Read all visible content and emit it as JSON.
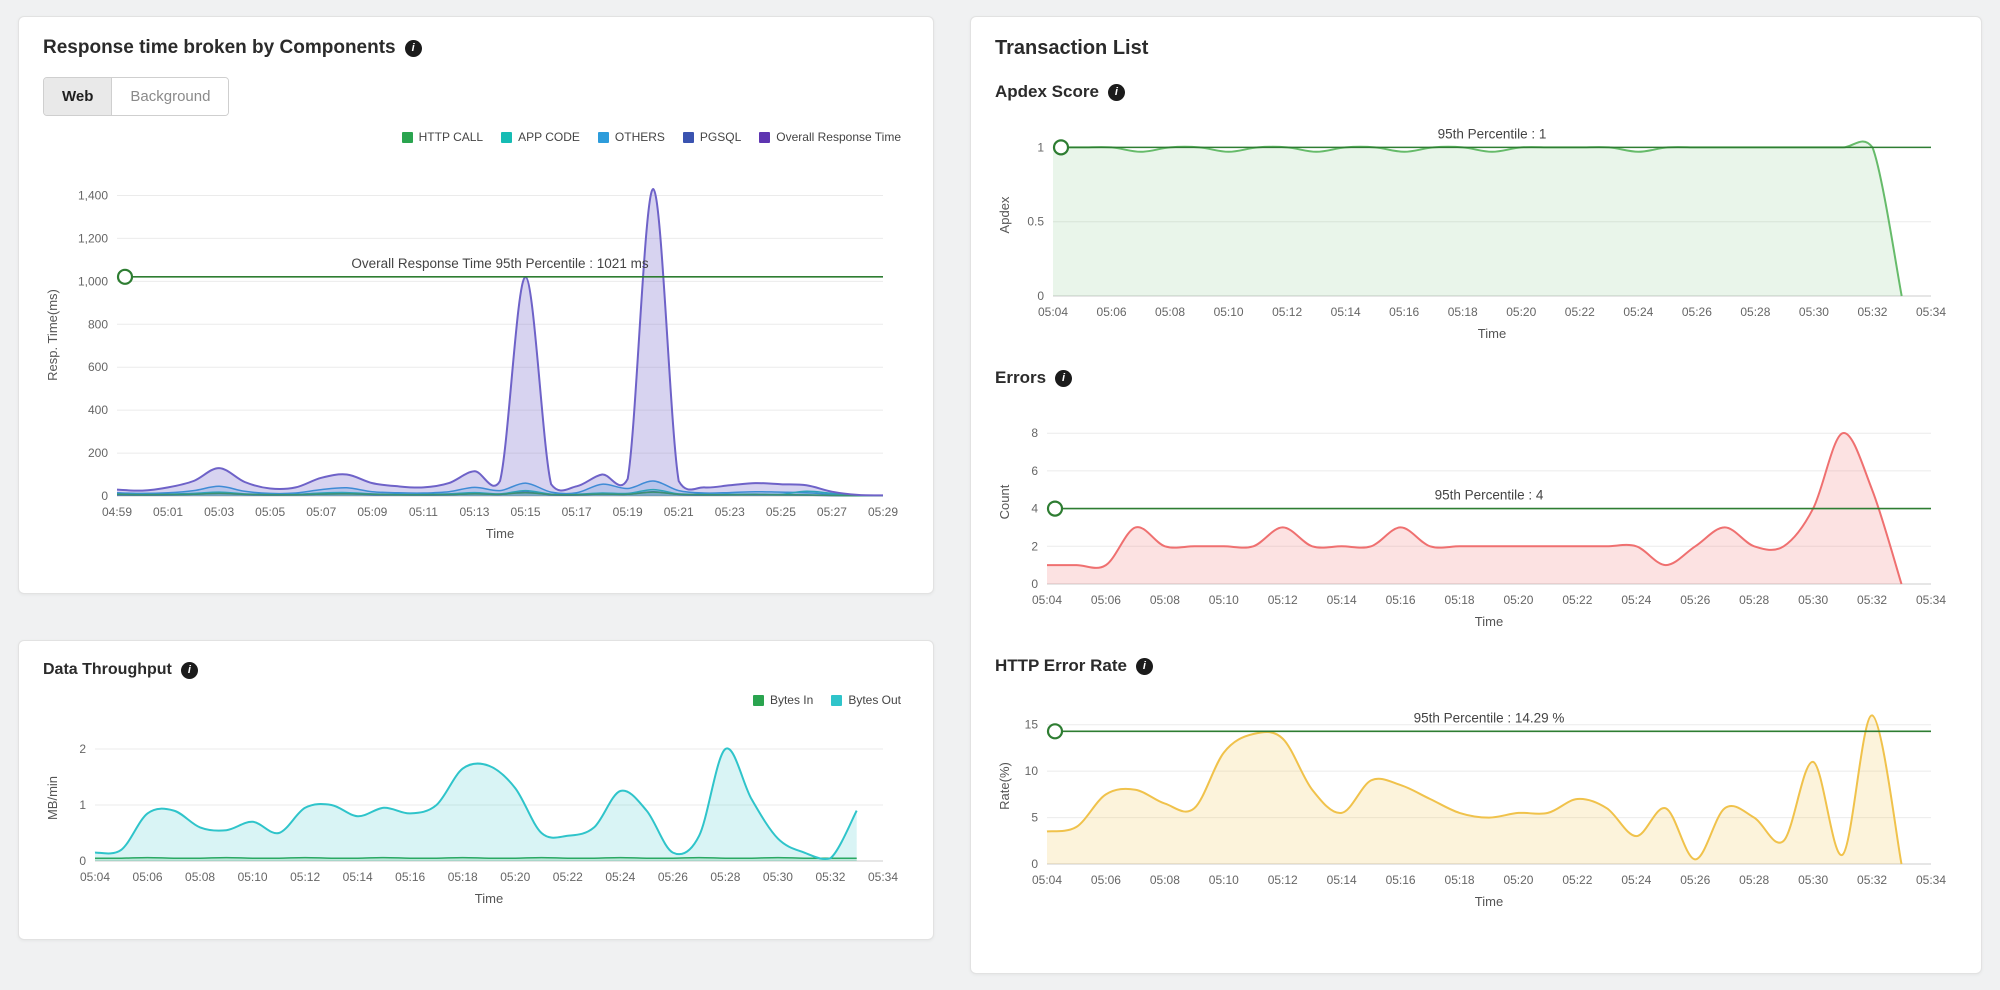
{
  "panels": {
    "response": {
      "title": "Response time broken by Components",
      "tabs": [
        {
          "label": "Web",
          "active": true
        },
        {
          "label": "Background",
          "active": false
        }
      ],
      "legend": [
        {
          "label": "HTTP CALL",
          "color": "#2aa44f"
        },
        {
          "label": "APP CODE",
          "color": "#16bcb4"
        },
        {
          "label": "OTHERS",
          "color": "#2d9cdb"
        },
        {
          "label": "PGSQL",
          "color": "#3a53b0"
        },
        {
          "label": "Overall Response Time",
          "color": "#5e35b1"
        }
      ]
    },
    "throughput": {
      "title": "Data Throughput",
      "legend": [
        {
          "label": "Bytes In",
          "color": "#2aa44f"
        },
        {
          "label": "Bytes Out",
          "color": "#2fc4ca"
        }
      ]
    },
    "transactions": {
      "title": "Transaction List",
      "sections": [
        {
          "title": "Apdex Score"
        },
        {
          "title": "Errors"
        },
        {
          "title": "HTTP Error Rate"
        }
      ]
    }
  },
  "chart_data": [
    {
      "id": "response-chart",
      "type": "area",
      "title": "Response time broken by Components",
      "xlabel": "Time",
      "ylabel": "Resp. Time(ms)",
      "x_labels": [
        "04:59",
        "05:01",
        "05:03",
        "05:05",
        "05:07",
        "05:09",
        "05:11",
        "05:13",
        "05:15",
        "05:17",
        "05:19",
        "05:21",
        "05:23",
        "05:25",
        "05:27",
        "05:29"
      ],
      "y_ticks": [
        [
          0,
          "0"
        ],
        [
          200,
          "200"
        ],
        [
          400,
          "400"
        ],
        [
          600,
          "600"
        ],
        [
          800,
          "800"
        ],
        [
          1000,
          "1,000"
        ],
        [
          1200,
          "1,200"
        ],
        [
          1400,
          "1,400"
        ]
      ],
      "ymax": 1500,
      "grid": true,
      "threshold": {
        "value": 1021,
        "label": "Overall Response Time 95th Percentile : 1021 ms",
        "color": "#2e7d32"
      },
      "series": [
        {
          "name": "PGSQL",
          "color": "#3a53b0",
          "fill": "rgba(58,83,176,0.20)",
          "lw": 1.5,
          "values": [
            5,
            4,
            5,
            8,
            12,
            7,
            4,
            5,
            9,
            11,
            6,
            5,
            4,
            6,
            11,
            7,
            18,
            5,
            4,
            10,
            8,
            20,
            7,
            4,
            5,
            6,
            5,
            4,
            2,
            1,
            1
          ]
        },
        {
          "name": "OTHERS",
          "color": "#2d9cdb",
          "fill": "rgba(45,156,219,0.20)",
          "lw": 1.5,
          "values": [
            15,
            12,
            15,
            25,
            45,
            22,
            12,
            14,
            30,
            38,
            20,
            15,
            14,
            20,
            40,
            25,
            60,
            18,
            15,
            55,
            35,
            70,
            25,
            14,
            16,
            20,
            18,
            15,
            8,
            3,
            1
          ]
        },
        {
          "name": "APP CODE",
          "color": "#16bcb4",
          "fill": "rgba(22,188,180,0.20)",
          "lw": 1.5,
          "values": [
            10,
            8,
            9,
            12,
            18,
            10,
            8,
            8,
            14,
            16,
            10,
            8,
            8,
            10,
            16,
            10,
            25,
            9,
            8,
            14,
            12,
            30,
            10,
            8,
            8,
            9,
            8,
            22,
            12,
            3,
            1
          ]
        },
        {
          "name": "HTTP CALL",
          "color": "#2aa44f",
          "fill": "rgba(42,164,79,0.20)",
          "lw": 1.5,
          "values": [
            8,
            6,
            7,
            8,
            12,
            8,
            6,
            6,
            9,
            10,
            8,
            6,
            6,
            7,
            10,
            8,
            15,
            7,
            6,
            9,
            8,
            18,
            8,
            6,
            6,
            7,
            6,
            5,
            3,
            2,
            1
          ]
        },
        {
          "name": "Overall Response Time",
          "color": "#6e62c8",
          "fill": "rgba(110,98,200,0.28)",
          "lw": 2,
          "values": [
            30,
            25,
            40,
            70,
            130,
            65,
            35,
            40,
            85,
            100,
            60,
            45,
            40,
            60,
            115,
            70,
            1020,
            55,
            45,
            100,
            80,
            1430,
            70,
            40,
            50,
            60,
            55,
            50,
            20,
            5,
            3
          ]
        }
      ]
    },
    {
      "id": "throughput-chart",
      "type": "area",
      "title": "Data Throughput",
      "xlabel": "Time",
      "ylabel": "MB/min",
      "x_labels": [
        "05:04",
        "05:06",
        "05:08",
        "05:10",
        "05:12",
        "05:14",
        "05:16",
        "05:18",
        "05:20",
        "05:22",
        "05:24",
        "05:26",
        "05:28",
        "05:30",
        "05:32",
        "05:34"
      ],
      "y_ticks": [
        [
          0,
          "0"
        ],
        [
          1,
          "1"
        ],
        [
          2,
          "2"
        ]
      ],
      "ymax": 2.25,
      "n_span": 31,
      "grid": true,
      "series": [
        {
          "name": "Bytes In",
          "color": "#2aa44f",
          "fill": "rgba(42,164,79,0.18)",
          "lw": 1.5,
          "values": [
            0.05,
            0.05,
            0.06,
            0.05,
            0.05,
            0.06,
            0.05,
            0.05,
            0.06,
            0.05,
            0.05,
            0.06,
            0.05,
            0.05,
            0.06,
            0.05,
            0.05,
            0.06,
            0.05,
            0.05,
            0.06,
            0.05,
            0.05,
            0.06,
            0.05,
            0.05,
            0.06,
            0.05,
            0.05,
            0.05
          ]
        },
        {
          "name": "Bytes Out",
          "color": "#2fc4ca",
          "fill": "rgba(47,196,202,0.18)",
          "lw": 2,
          "values": [
            0.15,
            0.2,
            0.85,
            0.9,
            0.6,
            0.55,
            0.7,
            0.5,
            0.95,
            1.0,
            0.8,
            0.95,
            0.85,
            1.0,
            1.65,
            1.7,
            1.3,
            0.5,
            0.45,
            0.6,
            1.25,
            0.9,
            0.15,
            0.45,
            2.0,
            1.1,
            0.4,
            0.15,
            0.05,
            0.9
          ]
        }
      ]
    },
    {
      "id": "apdex-chart",
      "type": "area",
      "title": "Apdex Score",
      "xlabel": "Time",
      "ylabel": "Apdex",
      "x_labels": [
        "05:04",
        "05:06",
        "05:08",
        "05:10",
        "05:12",
        "05:14",
        "05:16",
        "05:18",
        "05:20",
        "05:22",
        "05:24",
        "05:26",
        "05:28",
        "05:30",
        "05:32",
        "05:34"
      ],
      "y_ticks": [
        [
          0,
          "0"
        ],
        [
          0.5,
          "0.5"
        ],
        [
          1,
          "1"
        ]
      ],
      "ymax": 1.09,
      "n_span": 31,
      "grid": true,
      "threshold": {
        "value": 1,
        "label": "95th Percentile : 1",
        "color": "#2e7d32"
      },
      "series": [
        {
          "name": "Apdex",
          "color": "#66bb6a",
          "fill": "rgba(102,187,106,0.14)",
          "lw": 2,
          "values": [
            1,
            1,
            1,
            0.97,
            1,
            1,
            0.97,
            1,
            1,
            0.97,
            1,
            1,
            0.97,
            1,
            1,
            0.97,
            1,
            1,
            1,
            1,
            0.97,
            1,
            1,
            1,
            1,
            1,
            1,
            1,
            1,
            0
          ]
        }
      ]
    },
    {
      "id": "errors-chart",
      "type": "area",
      "title": "Errors",
      "xlabel": "Time",
      "ylabel": "Count",
      "x_labels": [
        "05:04",
        "05:06",
        "05:08",
        "05:10",
        "05:12",
        "05:14",
        "05:16",
        "05:18",
        "05:20",
        "05:22",
        "05:24",
        "05:26",
        "05:28",
        "05:30",
        "05:32",
        "05:34"
      ],
      "y_ticks": [
        [
          0,
          "0"
        ],
        [
          2,
          "2"
        ],
        [
          4,
          "4"
        ],
        [
          6,
          "6"
        ],
        [
          8,
          "8"
        ]
      ],
      "ymax": 8.7,
      "n_span": 31,
      "grid": true,
      "threshold": {
        "value": 4,
        "label": "95th Percentile : 4",
        "color": "#2e7d32"
      },
      "series": [
        {
          "name": "Errors",
          "color": "#ef7070",
          "fill": "rgba(239,112,112,0.20)",
          "lw": 2,
          "values": [
            1,
            1,
            1,
            3,
            2,
            2,
            2,
            2,
            3,
            2,
            2,
            2,
            3,
            2,
            2,
            2,
            2,
            2,
            2,
            2,
            2,
            1,
            2,
            3,
            2,
            2,
            4,
            8,
            5,
            0
          ]
        }
      ]
    },
    {
      "id": "errorrate-chart",
      "type": "area",
      "title": "HTTP Error Rate",
      "xlabel": "Time",
      "ylabel": "Rate(%)",
      "x_labels": [
        "05:04",
        "05:06",
        "05:08",
        "05:10",
        "05:12",
        "05:14",
        "05:16",
        "05:18",
        "05:20",
        "05:22",
        "05:24",
        "05:26",
        "05:28",
        "05:30",
        "05:32",
        "05:34"
      ],
      "y_ticks": [
        [
          0,
          "0"
        ],
        [
          5,
          "5"
        ],
        [
          10,
          "10"
        ],
        [
          15,
          "15"
        ]
      ],
      "ymax": 16.8,
      "n_span": 31,
      "grid": true,
      "threshold": {
        "value": 14.29,
        "label": "95th Percentile : 14.29 %",
        "color": "#2e7d32"
      },
      "series": [
        {
          "name": "HTTP Error Rate",
          "color": "#f0c24b",
          "fill": "rgba(240,194,75,0.20)",
          "lw": 2,
          "values": [
            3.5,
            4,
            7.5,
            8,
            6.5,
            6,
            12,
            14,
            13.5,
            8,
            5.5,
            9,
            8.5,
            7,
            5.5,
            5,
            5.5,
            5.5,
            7,
            6,
            3,
            6,
            0.5,
            6,
            5,
            2.5,
            11,
            1,
            16,
            0
          ]
        }
      ]
    }
  ]
}
